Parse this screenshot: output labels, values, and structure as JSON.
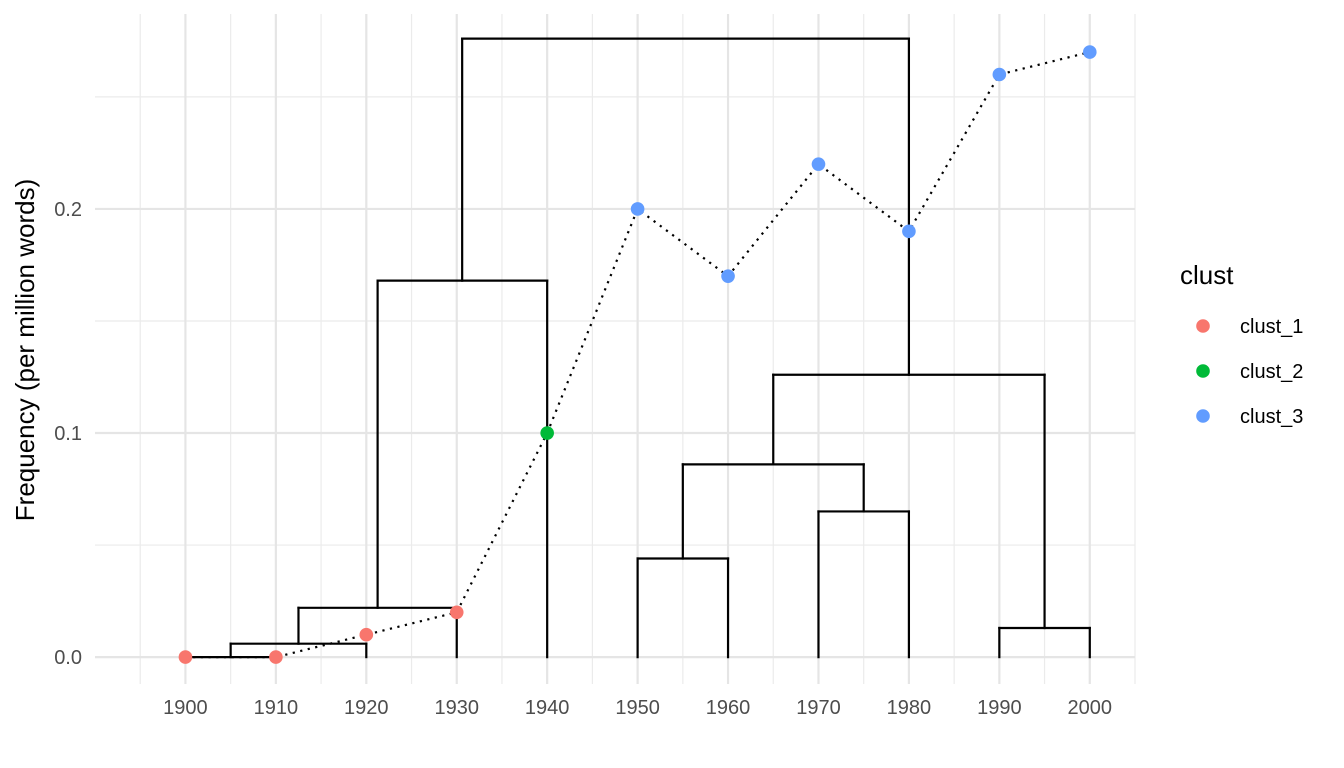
{
  "chart_data": {
    "type": "scatter",
    "title": "",
    "xlabel": "",
    "ylabel": "Frequency (per million words)",
    "xlim": [
      1890,
      2005
    ],
    "ylim": [
      -0.012,
      0.287
    ],
    "x_ticks": [
      1900,
      1910,
      1920,
      1930,
      1940,
      1950,
      1960,
      1970,
      1980,
      1990,
      2000
    ],
    "x_tick_labels": [
      "1900",
      "1910",
      "1920",
      "1930",
      "1940",
      "1950",
      "1960",
      "1970",
      "1980",
      "1990",
      "2000"
    ],
    "y_ticks": [
      0.0,
      0.1,
      0.2
    ],
    "y_tick_labels": [
      "0.0",
      "0.1",
      "0.2"
    ],
    "grid": true,
    "legend": {
      "title": "clust",
      "position": "right",
      "entries": [
        {
          "label": "clust_1",
          "color": "#F8766D"
        },
        {
          "label": "clust_2",
          "color": "#00BA38"
        },
        {
          "label": "clust_3",
          "color": "#619CFF"
        }
      ]
    },
    "points": [
      {
        "x": 1900,
        "y": 0.0,
        "cluster": "clust_1"
      },
      {
        "x": 1910,
        "y": 0.0,
        "cluster": "clust_1"
      },
      {
        "x": 1920,
        "y": 0.01,
        "cluster": "clust_1"
      },
      {
        "x": 1930,
        "y": 0.02,
        "cluster": "clust_1"
      },
      {
        "x": 1940,
        "y": 0.1,
        "cluster": "clust_2"
      },
      {
        "x": 1950,
        "y": 0.2,
        "cluster": "clust_3"
      },
      {
        "x": 1960,
        "y": 0.17,
        "cluster": "clust_3"
      },
      {
        "x": 1970,
        "y": 0.22,
        "cluster": "clust_3"
      },
      {
        "x": 1980,
        "y": 0.19,
        "cluster": "clust_3"
      },
      {
        "x": 1990,
        "y": 0.26,
        "cluster": "clust_3"
      },
      {
        "x": 2000,
        "y": 0.27,
        "cluster": "clust_3"
      }
    ],
    "connector_line": {
      "style": "dotted",
      "color": "#000000"
    },
    "dendrogram": {
      "color": "#000000",
      "segments": [
        [
          1900,
          0.0,
          1910,
          0.0
        ],
        [
          1905,
          0.0,
          1905,
          0.006
        ],
        [
          1920,
          0.0,
          1920,
          0.006
        ],
        [
          1905,
          0.006,
          1920,
          0.006
        ],
        [
          1912.5,
          0.006,
          1912.5,
          0.022
        ],
        [
          1930,
          0.0,
          1930,
          0.022
        ],
        [
          1912.5,
          0.022,
          1930,
          0.022
        ],
        [
          1921.25,
          0.022,
          1921.25,
          0.168
        ],
        [
          1940,
          0.0,
          1940,
          0.168
        ],
        [
          1921.25,
          0.168,
          1940,
          0.168
        ],
        [
          1930.6,
          0.168,
          1930.6,
          0.276
        ],
        [
          1950,
          0.0,
          1950,
          0.044
        ],
        [
          1960,
          0.0,
          1960,
          0.044
        ],
        [
          1950,
          0.044,
          1960,
          0.044
        ],
        [
          1970,
          0.0,
          1970,
          0.065
        ],
        [
          1980,
          0.0,
          1980,
          0.065
        ],
        [
          1970,
          0.065,
          1980,
          0.065
        ],
        [
          1955,
          0.044,
          1955,
          0.086
        ],
        [
          1975,
          0.065,
          1975,
          0.086
        ],
        [
          1955,
          0.086,
          1975,
          0.086
        ],
        [
          1990,
          0.0,
          1990,
          0.013
        ],
        [
          2000,
          0.0,
          2000,
          0.013
        ],
        [
          1990,
          0.013,
          2000,
          0.013
        ],
        [
          1965,
          0.086,
          1965,
          0.126
        ],
        [
          1995,
          0.013,
          1995,
          0.126
        ],
        [
          1965,
          0.126,
          1995,
          0.126
        ],
        [
          1980,
          0.126,
          1980,
          0.276
        ],
        [
          1930.6,
          0.276,
          1980,
          0.276
        ]
      ]
    }
  }
}
